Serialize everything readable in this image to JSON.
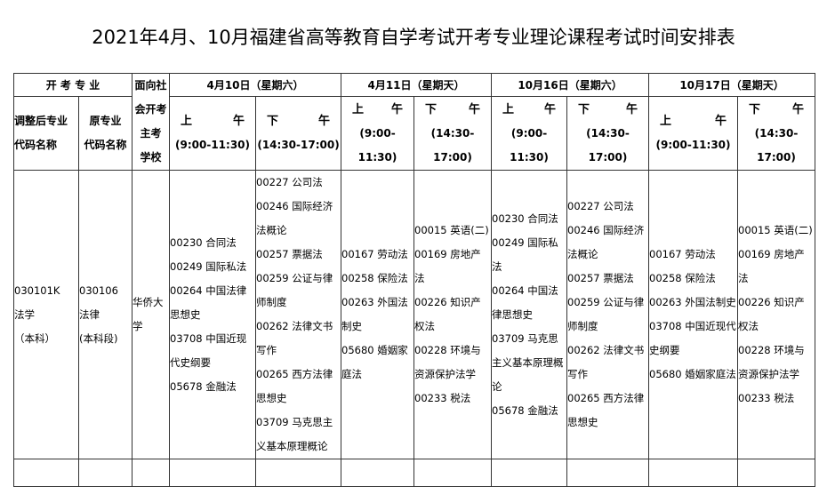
{
  "title": "2021年4月、10月福建省高等教育自学考试开考专业理论课程考试时间安排表",
  "header": {
    "major_group": "开 考 专 业",
    "new_major": [
      "调整后专业",
      "代码名称"
    ],
    "old_major": [
      "原专业",
      "代码名称"
    ],
    "school": [
      "面向社",
      "会开考",
      "主考",
      "学校"
    ],
    "dates": [
      "4月10日（星期六）",
      "4月11日（星期天）",
      "10月16日（星期六）",
      "10月17日（星期天）"
    ],
    "am": [
      "上",
      "午"
    ],
    "pm": [
      "下",
      "午"
    ],
    "am_time": "(9:00-11:30)",
    "pm_time": "(14:30-17:00)",
    "am_time_split": [
      "(9:00-",
      "11:30)"
    ],
    "pm_time_split": [
      "(14:30-",
      "17:00)"
    ]
  },
  "row": {
    "new_major": [
      "030101K",
      "法学",
      "（本科）"
    ],
    "old_major": [
      "030106",
      "法律",
      "(本科段)"
    ],
    "school": "华侨大学",
    "sessions": [
      [
        "00230 合同法",
        "00249 国际私法",
        "00264 中国法律思想史",
        "03708 中国近现代史纲要",
        "05678 金融法"
      ],
      [
        "00227 公司法",
        "00246 国际经济法概论",
        "00257 票据法",
        "00259 公证与律师制度",
        "00262 法律文书写作",
        "00265 西方法律思想史",
        "03709 马克思主义基本原理概论"
      ],
      [
        "00167 劳动法",
        "00258 保险法",
        "00263 外国法制史",
        "05680 婚姻家庭法"
      ],
      [
        "00015 英语(二)",
        "00169 房地产法",
        "00226 知识产权法",
        "00228 环境与资源保护法学",
        "00233 税法"
      ],
      [
        "00230 合同法",
        "00249 国际私法",
        "00264 中国法律思想史",
        "03709 马克思主义基本原理概论",
        "05678 金融法"
      ],
      [
        "00227 公司法",
        "00246 国际经济法概论",
        "00257 票据法",
        "00259 公证与律师制度",
        "00262 法律文书写作",
        "00265 西方法律思想史"
      ],
      [
        "00167 劳动法",
        "00258 保险法",
        "00263 外国法制史",
        "03708 中国近现代史纲要",
        "05680 婚姻家庭法"
      ],
      [
        "00015 英语(二)",
        "00169 房地产法",
        "00226 知识产权法",
        "00228 环境与资源保护法学",
        "00233 税法"
      ]
    ]
  }
}
